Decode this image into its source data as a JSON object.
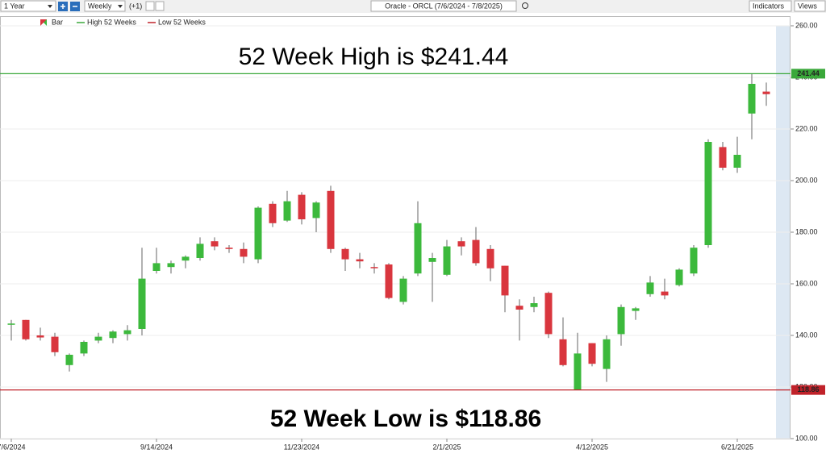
{
  "toolbar": {
    "range": "1 Year",
    "interval": "Weekly",
    "offset": "(+1)",
    "symbol": "Oracle - ORCL (7/6/2024 - 7/8/2025)",
    "indicators": "Indicators",
    "views": "Views"
  },
  "chart_data": {
    "type": "candlestick",
    "categories": [
      "7/6/2024",
      null,
      null,
      null,
      null,
      null,
      null,
      null,
      null,
      null,
      "9/14/2024",
      null,
      null,
      null,
      null,
      null,
      null,
      null,
      null,
      null,
      "11/23/2024",
      null,
      null,
      null,
      null,
      null,
      null,
      null,
      null,
      null,
      "2/1/2025",
      null,
      null,
      null,
      null,
      null,
      null,
      null,
      null,
      null,
      "4/12/2025",
      null,
      null,
      null,
      null,
      null,
      null,
      null,
      null,
      null,
      "6/21/2025",
      null,
      null
    ],
    "series": [
      {
        "name": "Bar",
        "up_color": "#3cb93c",
        "down_color": "#d9363e",
        "open": [
          144.5,
          146,
          140,
          139.5,
          128.5,
          133,
          138,
          139,
          140.5,
          142.5,
          165,
          166.5,
          169,
          170,
          176.5,
          174,
          173.5,
          169.5,
          191,
          184.5,
          194.5,
          185.5,
          196,
          173.5,
          169.5,
          166.5,
          167.5,
          153,
          164,
          168.5,
          163.5,
          176.5,
          177,
          173.5,
          167,
          151.5,
          151,
          156.5,
          138.5,
          119,
          137,
          127,
          140.5,
          149.5,
          156,
          157,
          159.5,
          164,
          175,
          213,
          205,
          226,
          234.5
        ],
        "high": [
          146,
          146,
          143,
          141,
          133,
          138,
          141,
          142,
          144,
          174,
          174,
          169,
          171,
          178,
          178,
          175,
          176,
          190,
          192,
          196,
          195.5,
          192,
          198,
          174,
          172,
          168,
          168,
          163,
          192,
          172,
          177,
          178,
          182,
          175,
          167,
          154,
          155,
          157,
          147,
          141,
          137,
          140,
          152,
          151,
          163,
          162,
          166,
          175,
          216,
          215,
          217,
          241.44,
          238
        ],
        "low": [
          138,
          138,
          138,
          132,
          126,
          132,
          137,
          137,
          138,
          140,
          164,
          164,
          166,
          169,
          173,
          172,
          168,
          168,
          182,
          184,
          183,
          180,
          172,
          165,
          166,
          164,
          154,
          152,
          163,
          153,
          163,
          171,
          167,
          161,
          149,
          138,
          149,
          139,
          128,
          118.86,
          128,
          122,
          136,
          146,
          155,
          154,
          159,
          163,
          174,
          204,
          203,
          216,
          229
        ],
        "close": [
          144.6,
          138.5,
          139.2,
          133.5,
          132.5,
          137.5,
          139.5,
          141.5,
          142,
          162,
          168,
          168,
          170.5,
          175.5,
          174.5,
          173.5,
          170.5,
          189.5,
          183.5,
          192,
          185,
          191.5,
          173.5,
          169.5,
          168.7,
          166.2,
          154.5,
          162,
          183.5,
          170,
          174.5,
          174.5,
          168,
          166,
          155.5,
          150,
          152.5,
          140.5,
          128.5,
          133,
          129,
          138.5,
          151,
          150.5,
          160.5,
          155.5,
          165.5,
          174,
          215,
          205,
          210,
          237.5,
          233.5
        ]
      }
    ],
    "reference_lines": [
      {
        "name": "High 52 Weeks",
        "value": 241.44,
        "color": "#3aa83a"
      },
      {
        "name": "Low 52 Weeks",
        "value": 118.86,
        "color": "#c0222a"
      }
    ],
    "annotations": [
      "52 Week High is $241.44",
      "52 Week Low is $118.86"
    ],
    "ylim": [
      100,
      260
    ],
    "yticks": [
      {
        "value": 100,
        "label": "100.00"
      },
      {
        "value": 120,
        "label": "120.00"
      },
      {
        "value": 140,
        "label": "140.00"
      },
      {
        "value": 160,
        "label": "160.00"
      },
      {
        "value": 180,
        "label": "180.00"
      },
      {
        "value": 200,
        "label": "200.00"
      },
      {
        "value": 220,
        "label": "220.00"
      },
      {
        "value": 240,
        "label": "240.00"
      },
      {
        "value": 260,
        "label": "260.00"
      }
    ],
    "grid": true
  }
}
